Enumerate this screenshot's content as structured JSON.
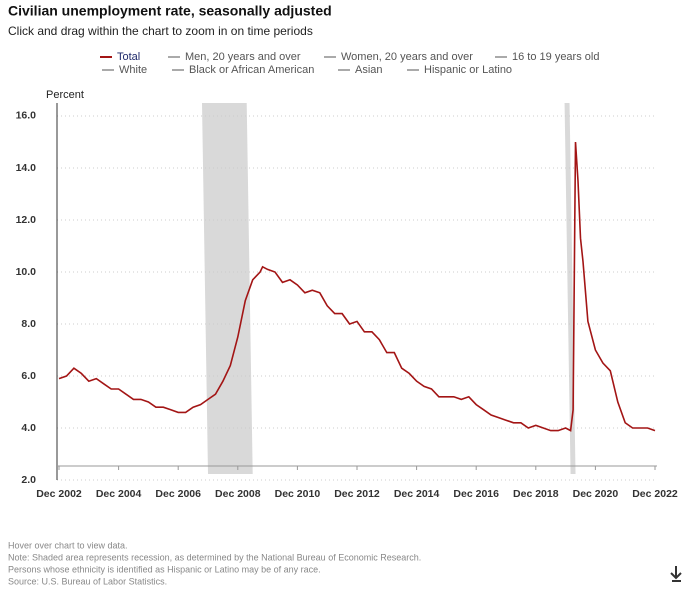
{
  "chart_data": {
    "type": "line",
    "title": "Civilian unemployment rate, seasonally adjusted",
    "subtitle": "Click and drag within the chart to zoom in on time periods",
    "y_label": "Percent",
    "x": [
      "2002-12",
      "2003-03",
      "2003-06",
      "2003-09",
      "2003-12",
      "2004-03",
      "2004-06",
      "2004-09",
      "2004-12",
      "2005-03",
      "2005-06",
      "2005-09",
      "2005-12",
      "2006-03",
      "2006-06",
      "2006-09",
      "2006-12",
      "2007-03",
      "2007-06",
      "2007-09",
      "2007-12",
      "2008-03",
      "2008-06",
      "2008-09",
      "2008-12",
      "2009-03",
      "2009-06",
      "2009-09",
      "2009-10",
      "2009-12",
      "2010-03",
      "2010-06",
      "2010-09",
      "2010-12",
      "2011-03",
      "2011-06",
      "2011-09",
      "2011-12",
      "2012-03",
      "2012-06",
      "2012-09",
      "2012-12",
      "2013-03",
      "2013-06",
      "2013-09",
      "2013-12",
      "2014-03",
      "2014-06",
      "2014-09",
      "2014-12",
      "2015-03",
      "2015-06",
      "2015-09",
      "2015-12",
      "2016-03",
      "2016-06",
      "2016-09",
      "2016-12",
      "2017-03",
      "2017-06",
      "2017-09",
      "2017-12",
      "2018-03",
      "2018-06",
      "2018-09",
      "2018-12",
      "2019-03",
      "2019-06",
      "2019-09",
      "2019-12",
      "2020-02",
      "2020-03",
      "2020-04",
      "2020-05",
      "2020-06",
      "2020-07",
      "2020-09",
      "2020-12",
      "2021-03",
      "2021-06",
      "2021-09",
      "2021-12",
      "2022-03",
      "2022-06",
      "2022-09",
      "2022-12"
    ],
    "series": [
      {
        "name": "Total",
        "color": "#a31515",
        "visible": true,
        "values": [
          5.9,
          6.0,
          6.3,
          6.1,
          5.8,
          5.9,
          5.7,
          5.5,
          5.5,
          5.3,
          5.1,
          5.1,
          5.0,
          4.8,
          4.8,
          4.7,
          4.6,
          4.6,
          4.8,
          4.9,
          5.1,
          5.3,
          5.8,
          6.4,
          7.5,
          8.9,
          9.7,
          10.0,
          10.2,
          10.1,
          10.0,
          9.6,
          9.7,
          9.5,
          9.2,
          9.3,
          9.2,
          8.7,
          8.4,
          8.4,
          8.0,
          8.1,
          7.7,
          7.7,
          7.4,
          6.9,
          6.9,
          6.3,
          6.1,
          5.8,
          5.6,
          5.5,
          5.2,
          5.2,
          5.2,
          5.1,
          5.2,
          4.9,
          4.7,
          4.5,
          4.4,
          4.3,
          4.2,
          4.2,
          4.0,
          4.1,
          4.0,
          3.9,
          3.9,
          4.0,
          3.9,
          4.7,
          15.0,
          13.5,
          11.3,
          10.4,
          8.1,
          7.0,
          6.5,
          6.2,
          5.0,
          4.2,
          4.0,
          4.0,
          4.0,
          3.9
        ]
      },
      {
        "name": "Men, 20 years and over",
        "color": "#888888",
        "visible": false
      },
      {
        "name": "Women, 20 years and over",
        "color": "#888888",
        "visible": false
      },
      {
        "name": "16 to 19 years old",
        "color": "#888888",
        "visible": false
      },
      {
        "name": "White",
        "color": "#888888",
        "visible": false
      },
      {
        "name": "Black or African American",
        "color": "#888888",
        "visible": false
      },
      {
        "name": "Asian",
        "color": "#888888",
        "visible": false
      },
      {
        "name": "Hispanic or Latino",
        "color": "#888888",
        "visible": false
      }
    ],
    "recessions": [
      {
        "start": "2007-12",
        "end": "2009-06"
      },
      {
        "start": "2020-02",
        "end": "2020-04"
      }
    ],
    "xlim": [
      "2002-12",
      "2022-12"
    ],
    "xticks": [
      {
        "value": "2002-12",
        "label": "Dec 2002"
      },
      {
        "value": "2004-12",
        "label": "Dec 2004"
      },
      {
        "value": "2006-12",
        "label": "Dec 2006"
      },
      {
        "value": "2008-12",
        "label": "Dec 2008"
      },
      {
        "value": "2010-12",
        "label": "Dec 2010"
      },
      {
        "value": "2012-12",
        "label": "Dec 2012"
      },
      {
        "value": "2014-12",
        "label": "Dec 2014"
      },
      {
        "value": "2016-12",
        "label": "Dec 2016"
      },
      {
        "value": "2018-12",
        "label": "Dec 2018"
      },
      {
        "value": "2020-12",
        "label": "Dec 2020"
      },
      {
        "value": "2022-12",
        "label": "Dec 2022"
      }
    ],
    "ylim": [
      2,
      16.5
    ],
    "yticks": [
      {
        "value": 2,
        "label": "2.0"
      },
      {
        "value": 4,
        "label": "4.0"
      },
      {
        "value": 6,
        "label": "6.0"
      },
      {
        "value": 8,
        "label": "8.0"
      },
      {
        "value": 10,
        "label": "10.0"
      },
      {
        "value": 12,
        "label": "12.0"
      },
      {
        "value": 14,
        "label": "14.0"
      },
      {
        "value": 16,
        "label": "16.0"
      }
    ],
    "grid": true,
    "notes": [
      "Hover over chart to view data.",
      "Note: Shaded area represents recession, as determined by the National Bureau of Economic Research.",
      "Persons whose ethnicity is identified as Hispanic or Latino may be of any race.",
      "Source: U.S. Bureau of Labor Statistics."
    ]
  }
}
